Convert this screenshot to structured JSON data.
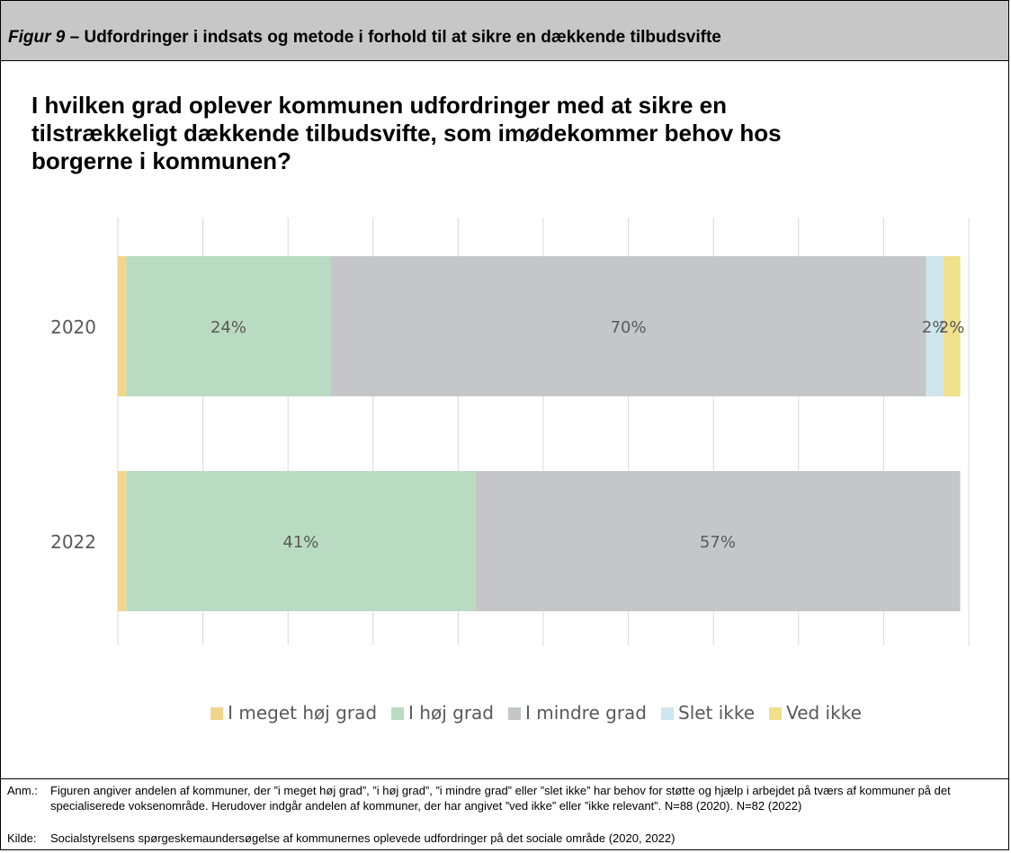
{
  "figure": {
    "label": "Figur 9",
    "title": " – Udfordringer i indsats og metode i forhold til at sikre en dækkende tilbudsvifte"
  },
  "chart_data": {
    "type": "bar",
    "orientation": "horizontal",
    "stacked": "100%",
    "title": "I hvilken grad oplever kommunen udfordringer med at sikre en tilstrækkeligt dækkende tilbudsvifte, som imødekommer behov hos borgerne i kommunen?",
    "categories": [
      "2020",
      "2022"
    ],
    "series": [
      {
        "name": "I meget høj grad",
        "color": "#f0d58c",
        "values": [
          1,
          1
        ],
        "labels": [
          "",
          ""
        ]
      },
      {
        "name": "I høj grad",
        "color": "#b9dbc1",
        "values": [
          24,
          41
        ],
        "labels": [
          "24%",
          "41%"
        ]
      },
      {
        "name": "I mindre grad",
        "color": "#c5c6c8",
        "values": [
          70,
          57
        ],
        "labels": [
          "70%",
          "57%"
        ]
      },
      {
        "name": "Slet ikke",
        "color": "#cde6ef",
        "values": [
          2,
          0
        ],
        "labels": [
          "2%",
          ""
        ]
      },
      {
        "name": "Ved ikke",
        "color": "#f0e08a",
        "values": [
          2,
          0
        ],
        "labels": [
          "2%",
          ""
        ]
      }
    ],
    "xlim": [
      0,
      100
    ],
    "grid": true,
    "legend_position": "bottom"
  },
  "notes": {
    "anm_label": "Anm.:",
    "anm_text": "Figuren angiver andelen af kommuner, der ”i meget høj grad”, ”i høj grad”, ”i mindre grad” eller ”slet ikke” har behov for støtte og hjælp i arbejdet på tværs af kommuner på det specialiserede voksenområde. Herudover indgår andelen af kommuner, der har angivet ”ved ikke” eller ”ikke relevant”. N=88 (2020). N=82 (2022)",
    "kilde_label": "Kilde:",
    "kilde_text": "Socialstyrelsens spørgeskemaundersøgelse af kommunernes oplevede udfordringer på det sociale område (2020, 2022)"
  }
}
